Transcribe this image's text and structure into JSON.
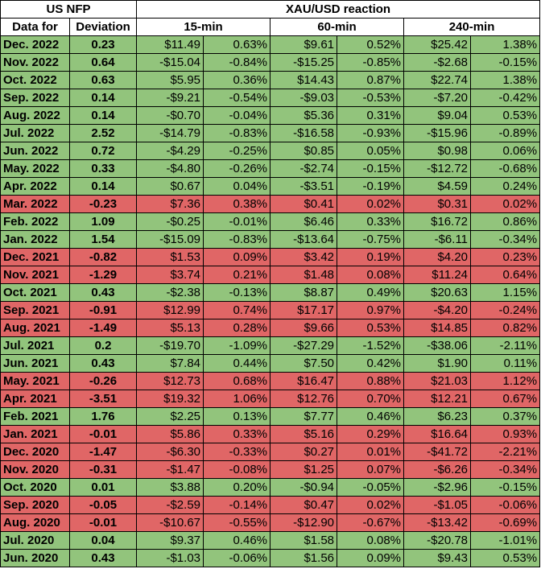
{
  "header": {
    "group_left": "US NFP",
    "group_right": "XAU/USD reaction",
    "col_date": "Data for",
    "col_dev": "Deviation",
    "col_15": "15-min",
    "col_60": "60-min",
    "col_240": "240-min"
  },
  "colors": {
    "green": "#92c47c",
    "red": "#e06666"
  },
  "rows": [
    {
      "date": "Dec. 2022",
      "dev": "0.23",
      "r15": "$11.49",
      "p15": "0.63%",
      "r60": "$9.61",
      "p60": "0.52%",
      "r240": "$25.42",
      "p240": "1.38%",
      "color": "green"
    },
    {
      "date": "Nov. 2022",
      "dev": "0.64",
      "r15": "-$15.04",
      "p15": "-0.84%",
      "r60": "-$15.25",
      "p60": "-0.85%",
      "r240": "-$2.68",
      "p240": "-0.15%",
      "color": "green"
    },
    {
      "date": "Oct. 2022",
      "dev": "0.63",
      "r15": "$5.95",
      "p15": "0.36%",
      "r60": "$14.43",
      "p60": "0.87%",
      "r240": "$22.74",
      "p240": "1.38%",
      "color": "green"
    },
    {
      "date": "Sep. 2022",
      "dev": "0.14",
      "r15": "-$9.21",
      "p15": "-0.54%",
      "r60": "-$9.03",
      "p60": "-0.53%",
      "r240": "-$7.20",
      "p240": "-0.42%",
      "color": "green"
    },
    {
      "date": "Aug. 2022",
      "dev": "0.14",
      "r15": "-$0.70",
      "p15": "-0.04%",
      "r60": "$5.36",
      "p60": "0.31%",
      "r240": "$9.04",
      "p240": "0.53%",
      "color": "green"
    },
    {
      "date": "Jul. 2022",
      "dev": "2.52",
      "r15": "-$14.79",
      "p15": "-0.83%",
      "r60": "-$16.58",
      "p60": "-0.93%",
      "r240": "-$15.96",
      "p240": "-0.89%",
      "color": "green"
    },
    {
      "date": "Jun. 2022",
      "dev": "0.72",
      "r15": "-$4.29",
      "p15": "-0.25%",
      "r60": "$0.85",
      "p60": "0.05%",
      "r240": "$0.98",
      "p240": "0.06%",
      "color": "green"
    },
    {
      "date": "May. 2022",
      "dev": "0.33",
      "r15": "-$4.80",
      "p15": "-0.26%",
      "r60": "-$2.74",
      "p60": "-0.15%",
      "r240": "-$12.72",
      "p240": "-0.68%",
      "color": "green"
    },
    {
      "date": "Apr. 2022",
      "dev": "0.14",
      "r15": "$0.67",
      "p15": "0.04%",
      "r60": "-$3.51",
      "p60": "-0.19%",
      "r240": "$4.59",
      "p240": "0.24%",
      "color": "green"
    },
    {
      "date": "Mar. 2022",
      "dev": "-0.23",
      "r15": "$7.36",
      "p15": "0.38%",
      "r60": "$0.41",
      "p60": "0.02%",
      "r240": "$0.31",
      "p240": "0.02%",
      "color": "red"
    },
    {
      "date": "Feb. 2022",
      "dev": "1.09",
      "r15": "-$0.25",
      "p15": "-0.01%",
      "r60": "$6.46",
      "p60": "0.33%",
      "r240": "$16.72",
      "p240": "0.86%",
      "color": "green"
    },
    {
      "date": "Jan. 2022",
      "dev": "1.54",
      "r15": "-$15.09",
      "p15": "-0.83%",
      "r60": "-$13.64",
      "p60": "-0.75%",
      "r240": "-$6.11",
      "p240": "-0.34%",
      "color": "green"
    },
    {
      "date": "Dec. 2021",
      "dev": "-0.82",
      "r15": "$1.53",
      "p15": "0.09%",
      "r60": "$3.42",
      "p60": "0.19%",
      "r240": "$4.20",
      "p240": "0.23%",
      "color": "red"
    },
    {
      "date": "Nov. 2021",
      "dev": "-1.29",
      "r15": "$3.74",
      "p15": "0.21%",
      "r60": "$1.48",
      "p60": "0.08%",
      "r240": "$11.24",
      "p240": "0.64%",
      "color": "red"
    },
    {
      "date": "Oct. 2021",
      "dev": "0.43",
      "r15": "-$2.38",
      "p15": "-0.13%",
      "r60": "$8.87",
      "p60": "0.49%",
      "r240": "$20.63",
      "p240": "1.15%",
      "color": "green"
    },
    {
      "date": "Sep. 2021",
      "dev": "-0.91",
      "r15": "$12.99",
      "p15": "0.74%",
      "r60": "$17.17",
      "p60": "0.97%",
      "r240": "-$4.20",
      "p240": "-0.24%",
      "color": "red"
    },
    {
      "date": "Aug. 2021",
      "dev": "-1.49",
      "r15": "$5.13",
      "p15": "0.28%",
      "r60": "$9.66",
      "p60": "0.53%",
      "r240": "$14.85",
      "p240": "0.82%",
      "color": "red"
    },
    {
      "date": "Jul. 2021",
      "dev": "0.2",
      "r15": "-$19.70",
      "p15": "-1.09%",
      "r60": "-$27.29",
      "p60": "-1.52%",
      "r240": "-$38.06",
      "p240": "-2.11%",
      "color": "green"
    },
    {
      "date": "Jun. 2021",
      "dev": "0.43",
      "r15": "$7.84",
      "p15": "0.44%",
      "r60": "$7.50",
      "p60": "0.42%",
      "r240": "$1.90",
      "p240": "0.11%",
      "color": "green"
    },
    {
      "date": "May. 2021",
      "dev": "-0.26",
      "r15": "$12.73",
      "p15": "0.68%",
      "r60": "$16.47",
      "p60": "0.88%",
      "r240": "$21.03",
      "p240": "1.12%",
      "color": "red"
    },
    {
      "date": "Apr. 2021",
      "dev": "-3.51",
      "r15": "$19.32",
      "p15": "1.06%",
      "r60": "$12.76",
      "p60": "0.70%",
      "r240": "$12.21",
      "p240": "0.67%",
      "color": "red"
    },
    {
      "date": "Feb. 2021",
      "dev": "1.76",
      "r15": "$2.25",
      "p15": "0.13%",
      "r60": "$7.77",
      "p60": "0.46%",
      "r240": "$6.23",
      "p240": "0.37%",
      "color": "green"
    },
    {
      "date": "Jan. 2021",
      "dev": "-0.01",
      "r15": "$5.86",
      "p15": "0.33%",
      "r60": "$5.16",
      "p60": "0.29%",
      "r240": "$16.64",
      "p240": "0.93%",
      "color": "red"
    },
    {
      "date": "Dec. 2020",
      "dev": "-1.47",
      "r15": "-$6.30",
      "p15": "-0.33%",
      "r60": "$0.27",
      "p60": "0.01%",
      "r240": "-$41.72",
      "p240": "-2.21%",
      "color": "red"
    },
    {
      "date": "Nov. 2020",
      "dev": "-0.31",
      "r15": "-$1.47",
      "p15": "-0.08%",
      "r60": "$1.25",
      "p60": "0.07%",
      "r240": "-$6.26",
      "p240": "-0.34%",
      "color": "red"
    },
    {
      "date": "Oct. 2020",
      "dev": "0.01",
      "r15": "$3.88",
      "p15": "0.20%",
      "r60": "-$0.94",
      "p60": "-0.05%",
      "r240": "-$2.96",
      "p240": "-0.15%",
      "color": "green"
    },
    {
      "date": "Sep. 2020",
      "dev": "-0.05",
      "r15": "-$2.59",
      "p15": "-0.14%",
      "r60": "$0.47",
      "p60": "0.02%",
      "r240": "-$1.05",
      "p240": "-0.06%",
      "color": "red"
    },
    {
      "date": "Aug. 2020",
      "dev": "-0.01",
      "r15": "-$10.67",
      "p15": "-0.55%",
      "r60": "-$12.90",
      "p60": "-0.67%",
      "r240": "-$13.42",
      "p240": "-0.69%",
      "color": "red"
    },
    {
      "date": "Jul. 2020",
      "dev": "0.04",
      "r15": "$9.37",
      "p15": "0.46%",
      "r60": "$1.58",
      "p60": "0.08%",
      "r240": "-$20.78",
      "p240": "-1.01%",
      "color": "green"
    },
    {
      "date": "Jun. 2020",
      "dev": "0.43",
      "r15": "-$1.03",
      "p15": "-0.06%",
      "r60": "$1.56",
      "p60": "0.09%",
      "r240": "$9.43",
      "p240": "0.53%",
      "color": "green"
    }
  ]
}
